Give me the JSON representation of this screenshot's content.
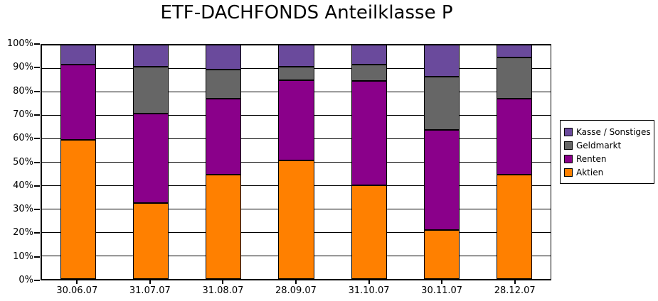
{
  "chart_data": {
    "type": "bar",
    "stacked": true,
    "title": "ETF-DACHFONDS Anteilklasse P",
    "xlabel": "",
    "ylabel": "",
    "categories": [
      "30.06.07",
      "31.07.07",
      "31.08.07",
      "28.09.07",
      "31.10.07",
      "30.11.07",
      "28.12.07"
    ],
    "series": [
      {
        "name": "Aktien",
        "color": "#FF8000",
        "values": [
          59.5,
          32.5,
          44.5,
          50.5,
          40.0,
          21.0,
          44.5
        ]
      },
      {
        "name": "Renten",
        "color": "#8A008A",
        "values": [
          32.0,
          38.0,
          32.5,
          34.5,
          44.5,
          42.5,
          32.5
        ]
      },
      {
        "name": "Geldmarkt",
        "color": "#666666",
        "values": [
          0.0,
          20.0,
          12.5,
          5.5,
          7.0,
          23.0,
          17.5
        ]
      },
      {
        "name": "Kasse / Sonstiges",
        "color": "#6A4A9C",
        "values": [
          8.5,
          9.5,
          10.5,
          9.5,
          8.5,
          13.5,
          5.5
        ]
      }
    ],
    "ylim": [
      0,
      100
    ],
    "yticks": [
      "0%",
      "10%",
      "20%",
      "30%",
      "40%",
      "50%",
      "60%",
      "70%",
      "80%",
      "90%",
      "100%"
    ],
    "legend_position": "right",
    "legend_order_top_to_bottom": [
      "Kasse / Sonstiges",
      "Geldmarkt",
      "Renten",
      "Aktien"
    ],
    "grid": "horizontal",
    "axis_color": "#000000",
    "background_color": "#FFFFFF"
  }
}
